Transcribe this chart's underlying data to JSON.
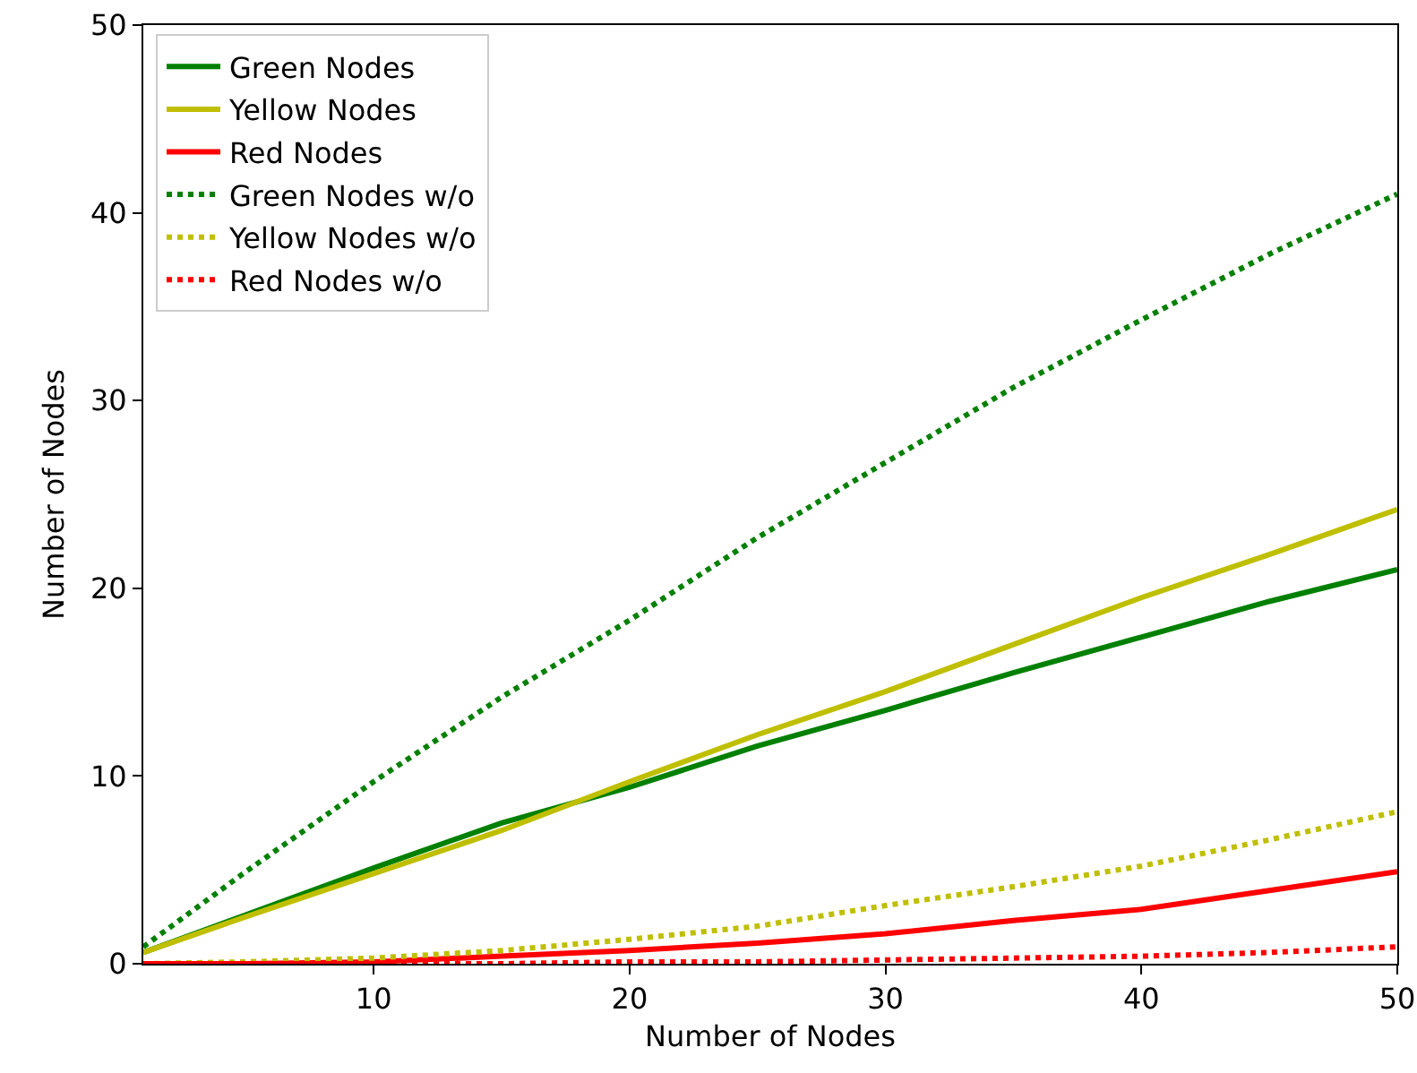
{
  "chart_data": {
    "type": "line",
    "xlabel": "Number of Nodes",
    "ylabel": "Number of Nodes",
    "x": [
      1,
      5,
      10,
      15,
      20,
      25,
      30,
      35,
      40,
      45,
      50
    ],
    "series": [
      {
        "name": "Green Nodes",
        "color": "#008000",
        "line_style": "solid",
        "values": [
          0.6,
          2.6,
          5.1,
          7.5,
          9.4,
          11.6,
          13.5,
          15.5,
          17.4,
          19.3,
          21
        ]
      },
      {
        "name": "Yellow Nodes",
        "color": "#bfbf00",
        "line_style": "solid",
        "values": [
          0.6,
          2.5,
          4.8,
          7.1,
          9.7,
          12.2,
          14.5,
          17.0,
          19.5,
          21.8,
          24.2
        ]
      },
      {
        "name": "Red Nodes",
        "color": "#ff0000",
        "line_style": "solid",
        "values": [
          0,
          0,
          0.1,
          0.4,
          0.7,
          1.1,
          1.6,
          2.3,
          2.9,
          3.9,
          4.9
        ]
      },
      {
        "name": "Green Nodes w/o",
        "color": "#008000",
        "line_style": "dotted",
        "values": [
          0.9,
          4.9,
          9.7,
          14.2,
          18.3,
          22.7,
          26.7,
          30.7,
          34.3,
          37.8,
          41
        ]
      },
      {
        "name": "Yellow Nodes w/o",
        "color": "#bfbf00",
        "line_style": "dotted",
        "values": [
          0,
          0.1,
          0.3,
          0.7,
          1.3,
          2.0,
          3.1,
          4.1,
          5.2,
          6.6,
          8.1
        ]
      },
      {
        "name": "Red Nodes w/o",
        "color": "#ff0000",
        "line_style": "dotted",
        "values": [
          0,
          0,
          0,
          0,
          0.1,
          0.1,
          0.2,
          0.3,
          0.4,
          0.6,
          0.9
        ]
      }
    ],
    "xlim": [
      1,
      50
    ],
    "xticks": [
      10,
      20,
      30,
      40,
      50
    ],
    "ylim": [
      0,
      50
    ],
    "yticks": [
      0,
      10,
      20,
      30,
      40,
      50
    ],
    "grid": false,
    "legend": "top left",
    "marker": "none"
  }
}
